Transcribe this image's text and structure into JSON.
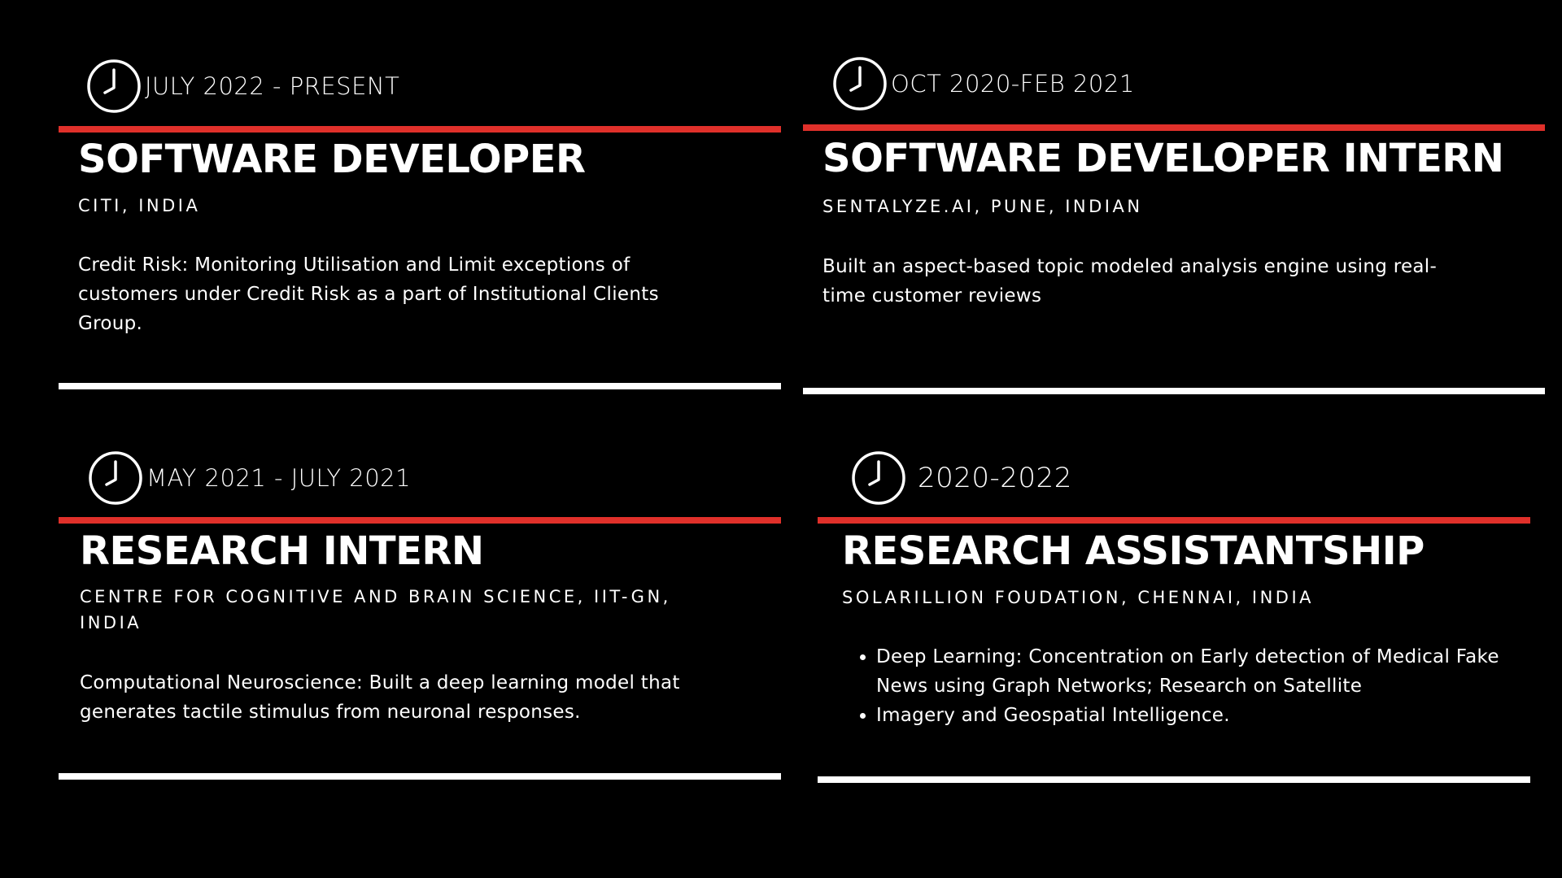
{
  "colors": {
    "background": "#000000",
    "accent_red": "#e0302a",
    "text": "#ffffff",
    "divider": "#ffffff"
  },
  "experiences": [
    {
      "icon": "clock-icon",
      "date": "JULY 2022 - PRESENT",
      "title": "SOFTWARE DEVELOPER",
      "org": "CITI, INDIA",
      "description": "Credit Risk: Monitoring Utilisation and Limit exceptions of customers under Credit Risk as a part of Institutional Clients Group."
    },
    {
      "icon": "clock-icon",
      "date": "OCT 2020-FEB 2021",
      "title": "SOFTWARE DEVELOPER INTERN",
      "org": "SENTALYZE.AI, PUNE, INDIAN",
      "description": "Built an aspect-based topic modeled analysis engine using real-time customer reviews"
    },
    {
      "icon": "clock-icon",
      "date": "MAY 2021 - JULY 2021",
      "title": "RESEARCH INTERN",
      "org": "CENTRE FOR COGNITIVE AND BRAIN SCIENCE, IIT-GN, INDIA",
      "description": "Computational Neuroscience: Built a deep learning model that generates tactile stimulus from neuronal responses."
    },
    {
      "icon": "clock-icon",
      "date": "2020-2022",
      "title": "RESEARCH ASSISTANTSHIP",
      "org": "SOLARILLION FOUDATION, CHENNAI, INDIA",
      "bullets": [
        "Deep Learning: Concentration on Early detection of Medical Fake News using Graph Networks; Research on Satellite",
        "Imagery and Geospatial Intelligence."
      ]
    }
  ]
}
